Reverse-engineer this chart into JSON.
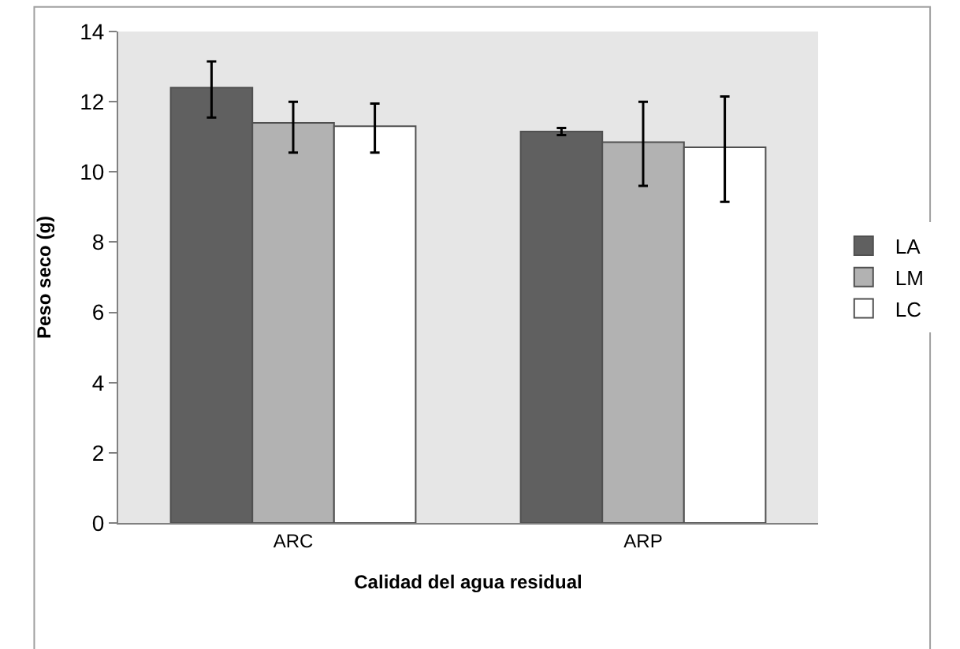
{
  "chart_data": {
    "type": "bar",
    "xlabel": "Calidad del agua residual",
    "ylabel": "Peso seco (g)",
    "categories": [
      "ARC",
      "ARP"
    ],
    "series": [
      {
        "name": "LA",
        "color": "#606060",
        "values": [
          12.4,
          11.15
        ],
        "errors": [
          [
            11.55,
            13.15
          ],
          [
            11.05,
            11.25
          ]
        ]
      },
      {
        "name": "LM",
        "color": "#b2b2b2",
        "values": [
          11.4,
          10.85
        ],
        "errors": [
          [
            10.55,
            12.0
          ],
          [
            9.6,
            12.0
          ]
        ]
      },
      {
        "name": "LC",
        "color": "#ffffff",
        "values": [
          11.3,
          10.7
        ],
        "errors": [
          [
            10.55,
            11.95
          ],
          [
            9.15,
            12.15
          ]
        ]
      }
    ],
    "ylim": [
      0,
      14
    ],
    "yticks": [
      0,
      2,
      4,
      6,
      8,
      10,
      12,
      14
    ],
    "grid": false,
    "legend": "right"
  }
}
